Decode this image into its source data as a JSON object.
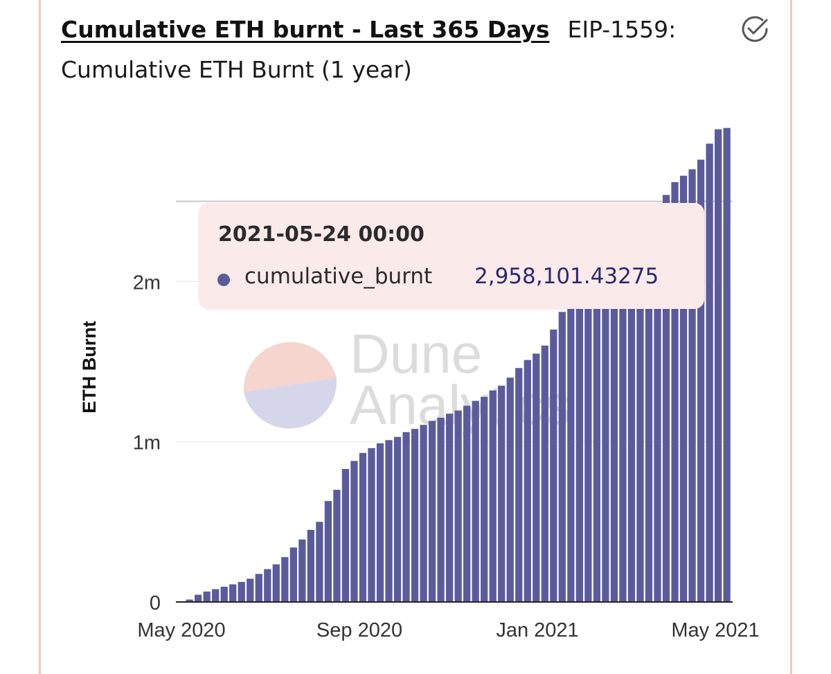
{
  "header": {
    "title": "Cumulative ETH burnt - Last 365 Days",
    "subtitle": "EIP-1559: Cumulative ETH Burnt (1 year)",
    "check_icon": "check-circle-icon"
  },
  "watermark": {
    "line1": "Dune",
    "line2": "Analytics",
    "logo_colors": [
      "#f6d5cf",
      "#d6d6ea"
    ]
  },
  "tooltip": {
    "date": "2021-05-24 00:00",
    "series": "cumulative_burnt",
    "value": "2,958,101.43275",
    "dot_color": "#5b5b9c"
  },
  "chart_data": {
    "type": "bar",
    "x_start": "2020-05-31",
    "x_step_days": 7,
    "values": [
      2000,
      15000,
      45000,
      65000,
      80000,
      95000,
      110000,
      125000,
      145000,
      175000,
      205000,
      235000,
      280000,
      340000,
      390000,
      450000,
      500000,
      630000,
      700000,
      830000,
      880000,
      930000,
      960000,
      990000,
      1010000,
      1030000,
      1060000,
      1080000,
      1105000,
      1130000,
      1150000,
      1175000,
      1195000,
      1225000,
      1255000,
      1280000,
      1320000,
      1350000,
      1400000,
      1460000,
      1510000,
      1550000,
      1600000,
      1700000,
      1810000,
      1850000,
      1900000,
      1950000,
      2000000,
      2060000,
      2120000,
      2180000,
      2250000,
      2330000,
      2410000,
      2480000,
      2540000,
      2620000,
      2660000,
      2700000,
      2760000,
      2860000,
      2950000,
      2958101.43275
    ],
    "x_ticks": [
      "May 2020",
      "Sep 2020",
      "Jan 2021",
      "May 2021"
    ],
    "y_ticks": [
      "0",
      "1m",
      "2m"
    ],
    "y_tick_values": [
      0,
      1000000,
      2000000
    ],
    "ylabel": "ETH Burnt",
    "xlabel": "",
    "ylim": [
      0,
      3000000
    ],
    "bar_color": "#5b5b9c",
    "grid": true
  }
}
